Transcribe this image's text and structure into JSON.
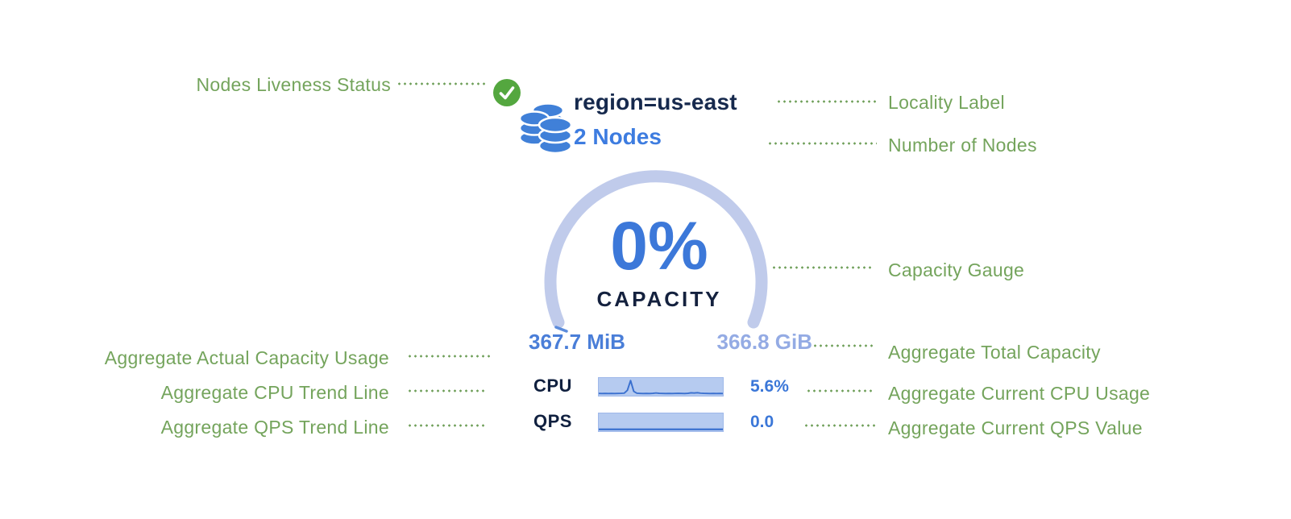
{
  "cluster": {
    "locality": "region=us-east",
    "nodes": "2 Nodes",
    "liveness_icon": "check-circle-icon",
    "group_icon": "database-stack-icon"
  },
  "gauge": {
    "percent": "0%",
    "caption": "CAPACITY",
    "used": "367.7 MiB",
    "total": "366.8 GiB"
  },
  "metrics": {
    "cpu_label": "CPU",
    "cpu_value": "5.6%",
    "qps_label": "QPS",
    "qps_value": "0.0"
  },
  "annotations": {
    "nodes_liveness": "Nodes Liveness Status",
    "locality_label": "Locality Label",
    "number_of_nodes": "Number of Nodes",
    "capacity_gauge": "Capacity Gauge",
    "aggregate_actual_capacity_usage": "Aggregate Actual Capacity Usage",
    "aggregate_total_capacity": "Aggregate Total Capacity",
    "aggregate_cpu_trend": "Aggregate CPU Trend Line",
    "aggregate_current_cpu": "Aggregate Current CPU Usage",
    "aggregate_qps_trend": "Aggregate QPS Trend Line",
    "aggregate_current_qps": "Aggregate Current QPS Value"
  },
  "colors": {
    "annotation_green": "#74a45c",
    "leader_dot_green": "#6f9f5a",
    "liveness_check_green": "#54a73f",
    "node_icon_blue": "#4080d8",
    "dark_navy_text": "#16294d",
    "bright_blue_text": "#3c78d9",
    "gauge_arc_light_blue": "#c0cbeb",
    "gauge_start_tick_blue": "#5c8cdb",
    "sparkline_bg_blue": "#b6cbf0",
    "sparkline_line_blue": "#3a70cf",
    "used_capacity_blue": "#4a7ed8",
    "total_capacity_blue": "#94abe4"
  },
  "chart_data": [
    {
      "type": "line",
      "name": "cpu-sparkline",
      "title": "Aggregate CPU Trend Line",
      "current_value": "5.6%",
      "ylim": [
        0,
        8
      ],
      "ymax": 8,
      "values": [
        0.25,
        0.2,
        0.25,
        0.2,
        0.25,
        0.2,
        0.25,
        0.3,
        0.4,
        2.2,
        8,
        1.5,
        0.35,
        0.25,
        0.2,
        0.25,
        0.2,
        0.3,
        0.55,
        0.3,
        0.25,
        0.2,
        0.25,
        0.2,
        0.25,
        0.3,
        0.25,
        0.2,
        0.3,
        0.6,
        0.5,
        0.65,
        0.4,
        0.3,
        0.25,
        0.2,
        0.25,
        0.2,
        0.25,
        0.2
      ]
    },
    {
      "type": "line",
      "name": "qps-sparkline",
      "title": "Aggregate QPS Trend Line",
      "current_value": "0.0",
      "ylim": [
        0,
        1
      ],
      "ymax": 1,
      "values": [
        0,
        0,
        0,
        0,
        0,
        0,
        0,
        0,
        0,
        0,
        0,
        0,
        0,
        0,
        0,
        0,
        0,
        0,
        0,
        0,
        0,
        0,
        0,
        0,
        0,
        0,
        0,
        0,
        0,
        0,
        0,
        0,
        0,
        0,
        0,
        0,
        0,
        0,
        0,
        0
      ]
    }
  ]
}
